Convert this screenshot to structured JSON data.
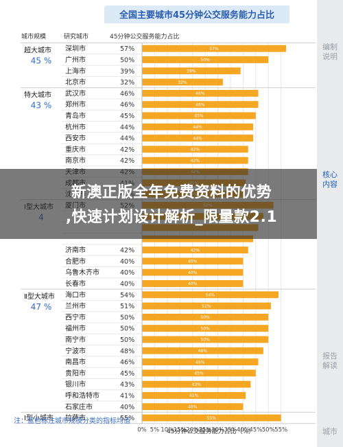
{
  "chart_data": {
    "type": "bar",
    "orientation": "horizontal",
    "title": "全国主要城市45分钟公交服务能力占比",
    "header_tier": "城市规模",
    "header_city": "研究城市",
    "header_chart": "45分钟公交服务能力占比",
    "xlabel": "45分钟公交服务能力占比（%）",
    "xlim": [
      0,
      60
    ],
    "xticks": [
      "0%",
      "5%",
      "10%",
      "15%",
      "20%",
      "25%",
      "30%",
      "35%",
      "40%",
      "45%",
      "50%",
      "55%"
    ],
    "bar_color": "#f5a623",
    "tiers": [
      {
        "name": "超大城市",
        "avg": "45 %"
      },
      {
        "name": "特大城市",
        "avg": "43 %"
      },
      {
        "name": "Ⅰ型大城市",
        "avg": "4"
      },
      {
        "name": "Ⅱ型大城市",
        "avg": "47 %"
      },
      {
        "name": "Ⅰ型小城市",
        "avg": ""
      }
    ],
    "rows": [
      {
        "tier": 0,
        "city": "深圳市",
        "pct": "57%",
        "value": 57
      },
      {
        "tier": 0,
        "city": "广州市",
        "pct": "50%",
        "value": 50
      },
      {
        "tier": 0,
        "city": "上海市",
        "pct": "39%",
        "value": 39
      },
      {
        "tier": 0,
        "city": "北京市",
        "pct": "32%",
        "value": 32
      },
      {
        "tier": 1,
        "city": "武汉市",
        "pct": "46%",
        "value": 46
      },
      {
        "tier": 1,
        "city": "郑州市",
        "pct": "46%",
        "value": 46
      },
      {
        "tier": 1,
        "city": "青岛市",
        "pct": "45%",
        "value": 45
      },
      {
        "tier": 1,
        "city": "杭州市",
        "pct": "44%",
        "value": 44
      },
      {
        "tier": 1,
        "city": "西安市",
        "pct": "44%",
        "value": 44
      },
      {
        "tier": 1,
        "city": "重庆市",
        "pct": "42%",
        "value": 42
      },
      {
        "tier": 1,
        "city": "南京市",
        "pct": "42%",
        "value": 42
      },
      {
        "tier": 1,
        "city": "天津市",
        "pct": "42%",
        "value": 42
      },
      {
        "tier": 1,
        "city": "成都市",
        "pct": "41%",
        "value": 41
      },
      {
        "tier": 1,
        "city": "沈阳市",
        "pct": "40%",
        "value": 40
      },
      {
        "tier": 2,
        "city": "厦门市",
        "pct": "52%",
        "value": 52
      },
      {
        "tier": 2,
        "city": "",
        "pct": "",
        "value": 48
      },
      {
        "tier": 2,
        "city": "",
        "pct": "",
        "value": 46
      },
      {
        "tier": 2,
        "city": "",
        "pct": "",
        "value": 44
      },
      {
        "tier": 2,
        "city": "济南市",
        "pct": "42%",
        "value": 42
      },
      {
        "tier": 2,
        "city": "合肥市",
        "pct": "40%",
        "value": 40
      },
      {
        "tier": 2,
        "city": "乌鲁木齐市",
        "pct": "40%",
        "value": 40
      },
      {
        "tier": 2,
        "city": "长春市",
        "pct": "40%",
        "value": 40
      },
      {
        "tier": 3,
        "city": "海口市",
        "pct": "54%",
        "value": 54
      },
      {
        "tier": 3,
        "city": "兰州市",
        "pct": "51%",
        "value": 51
      },
      {
        "tier": 3,
        "city": "西宁市",
        "pct": "50%",
        "value": 50
      },
      {
        "tier": 3,
        "city": "福州市",
        "pct": "50%",
        "value": 50
      },
      {
        "tier": 3,
        "city": "南宁市",
        "pct": "50%",
        "value": 50
      },
      {
        "tier": 3,
        "city": "宁波市",
        "pct": "48%",
        "value": 48
      },
      {
        "tier": 3,
        "city": "南昌市",
        "pct": "46%",
        "value": 46
      },
      {
        "tier": 3,
        "city": "贵阳市",
        "pct": "45%",
        "value": 45
      },
      {
        "tier": 3,
        "city": "银川市",
        "pct": "43%",
        "value": 43
      },
      {
        "tier": 3,
        "city": "呼和浩特市",
        "pct": "41%",
        "value": 41
      },
      {
        "tier": 3,
        "city": "石家庄市",
        "pct": "40%",
        "value": 40
      },
      {
        "tier": 4,
        "city": "拉萨市",
        "pct": "55%",
        "value": 55
      }
    ]
  },
  "note": "注：蓝色标注城市规模分类的指标均值",
  "banner": {
    "line1": "新澳正版全年免费资料的优势",
    "line2": ",快速计划设计解析_限量款2.1"
  },
  "sidebar": {
    "tabs": [
      "编制说明",
      "核心内容",
      "报告解读",
      "城市"
    ],
    "active": 1
  }
}
